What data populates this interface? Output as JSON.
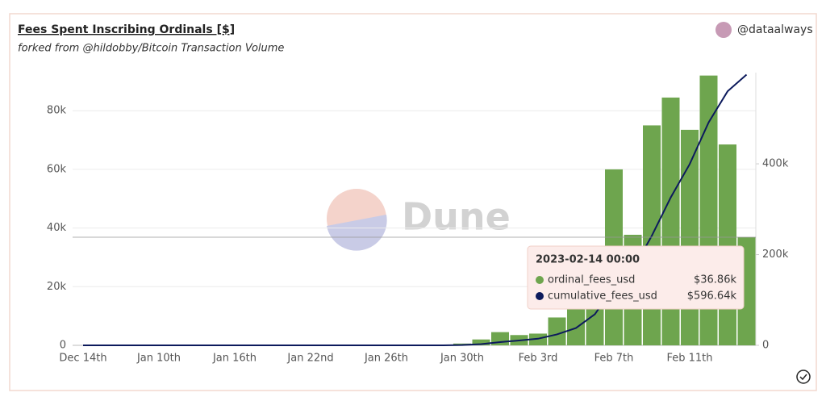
{
  "chart_data": {
    "type": "bar-line",
    "title": "Fees Spent Inscribing Ordinals [$]",
    "subtitle": "forked from @hildobby/Bitcoin Transaction Volume",
    "author": "@dataalways",
    "watermark": "Dune",
    "tooltip_title": "2023-02-14 00:00",
    "categories": [
      "Dec 14th",
      null,
      null,
      null,
      "Jan 10th",
      null,
      null,
      null,
      "Jan 16th",
      null,
      null,
      null,
      "Jan 22nd",
      null,
      null,
      null,
      "Jan 26th",
      null,
      null,
      null,
      "Jan 30th",
      null,
      null,
      null,
      "Feb 3rd",
      null,
      null,
      null,
      "Feb 7th",
      null,
      null,
      null,
      "Feb 11th",
      null,
      null,
      null
    ],
    "series": [
      {
        "name": "ordinal_fees_usd",
        "color": "#6ea54e",
        "kind": "bar",
        "values": [
          0,
          0,
          0,
          0,
          0,
          0,
          0,
          0,
          0,
          0,
          0,
          0,
          0,
          0,
          0,
          0,
          0,
          0,
          0,
          0,
          600,
          2000,
          4500,
          3500,
          4000,
          9500,
          14000,
          30500,
          60000,
          37700,
          75000,
          84500,
          73500,
          92000,
          68500,
          36860
        ],
        "value_labels": [
          null,
          null,
          null,
          null,
          null,
          null,
          null,
          null,
          null,
          null,
          null,
          null,
          null,
          null,
          null,
          null,
          null,
          null,
          null,
          null,
          null,
          null,
          null,
          null,
          null,
          null,
          null,
          null,
          null,
          null,
          null,
          null,
          null,
          null,
          null,
          "$36.86k"
        ]
      },
      {
        "name": "cumulative_fees_usd",
        "color": "#0c1a5c",
        "kind": "line",
        "axis": "y2",
        "values": [
          0,
          0,
          0,
          0,
          0,
          0,
          0,
          0,
          0,
          0,
          0,
          0,
          0,
          0,
          0,
          0,
          0,
          0,
          0,
          0,
          600,
          2600,
          7100,
          10600,
          14600,
          24100,
          38100,
          68600,
          128600,
          166300,
          241300,
          325800,
          399300,
          491300,
          559800,
          596640
        ],
        "value_labels": [
          null,
          null,
          null,
          null,
          null,
          null,
          null,
          null,
          null,
          null,
          null,
          null,
          null,
          null,
          null,
          null,
          null,
          null,
          null,
          null,
          null,
          null,
          null,
          null,
          null,
          null,
          null,
          null,
          null,
          null,
          null,
          null,
          null,
          null,
          null,
          "$596.64k"
        ]
      }
    ],
    "ylim": [
      0,
      93000
    ],
    "yticks": [
      0,
      {
        "value": 20000,
        "label": "20k"
      },
      {
        "value": 40000,
        "label": "40k"
      },
      {
        "value": 60000,
        "label": "60k"
      },
      {
        "value": 80000,
        "label": "80k"
      }
    ],
    "y2lim": [
      0,
      601000
    ],
    "y2ticks": [
      0,
      {
        "value": 200000,
        "label": "200k"
      },
      {
        "value": 400000,
        "label": "400k"
      }
    ],
    "grid": true
  }
}
